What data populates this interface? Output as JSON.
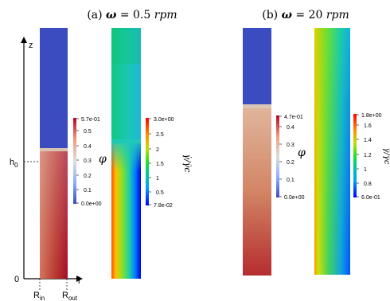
{
  "panel_a": {
    "title_prefix": "(a) ",
    "title_var": "ω",
    "title_eq": " = 0.5 ",
    "title_unit": "rpm",
    "axis": {
      "z": "z",
      "r": "r",
      "h0": "h",
      "h0_sub": "0",
      "zero": "0",
      "rin": "R",
      "rin_sub": "in",
      "rout": "R",
      "rout_sub": "out"
    },
    "phi_bar": {
      "label": "φ",
      "ticks": [
        "5.7e-01",
        "0.5",
        "0.4",
        "0.3",
        "0.2",
        "0.1",
        "0.0e+00"
      ]
    },
    "shear_bar": {
      "label": "γ̇/γ̇c",
      "ticks": [
        "3.0e+00",
        "2.5",
        "2",
        "1.5",
        "1",
        "0.5",
        "7.8e-02"
      ]
    }
  },
  "panel_b": {
    "title_prefix": "(b) ",
    "title_var": "ω",
    "title_eq": " = 20 ",
    "title_unit": "rpm",
    "phi_bar": {
      "label": "φ",
      "ticks": [
        "4.7e-01",
        "0.4",
        "0.3",
        "0.2",
        "0.1",
        "0.0e+00"
      ]
    },
    "shear_bar": {
      "label": "γ̇/γ̇c",
      "ticks": [
        "1.8e+00",
        "1.6",
        "1.4",
        "1.2",
        "1",
        "0.8",
        "6.0e-01"
      ]
    }
  },
  "colors": {
    "clear_blue": "#3b4cc0",
    "suspension_red": "#b40426",
    "interface": "#d9c2b0"
  }
}
